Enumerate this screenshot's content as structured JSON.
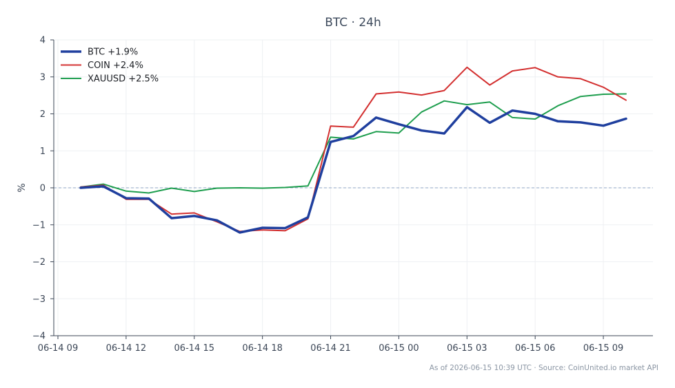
{
  "chart_data": {
    "type": "line",
    "title": "BTC · 24h",
    "xlabel": "",
    "ylabel": "%",
    "ylim": [
      -4,
      4
    ],
    "xlim": [
      "2026-06-14 09:00",
      "2026-06-15 11:00"
    ],
    "yticks": [
      4,
      3,
      2,
      1,
      0,
      -1,
      -2,
      -3,
      -4
    ],
    "ytick_labels": [
      "4",
      "3",
      "2",
      "1",
      "0",
      "−1",
      "−2",
      "−3",
      "−4"
    ],
    "xticks": [
      {
        "t": "2026-06-14 09:00",
        "label": "06-14 09"
      },
      {
        "t": "2026-06-14 12:00",
        "label": "06-14 12"
      },
      {
        "t": "2026-06-14 15:00",
        "label": "06-14 15"
      },
      {
        "t": "2026-06-14 18:00",
        "label": "06-14 18"
      },
      {
        "t": "2026-06-14 21:00",
        "label": "06-14 21"
      },
      {
        "t": "2026-06-15 00:00",
        "label": "06-15 00"
      },
      {
        "t": "2026-06-15 03:00",
        "label": "06-15 03"
      },
      {
        "t": "2026-06-15 06:00",
        "label": "06-15 06"
      },
      {
        "t": "2026-06-15 09:00",
        "label": "06-15 09"
      }
    ],
    "grid": true,
    "reference_line": {
      "y": 0,
      "style": "dashed",
      "color": "#8fa4c4"
    },
    "legend_position": "top-left",
    "x": [
      "2026-06-14 10:00",
      "2026-06-14 11:00",
      "2026-06-14 12:00",
      "2026-06-14 13:00",
      "2026-06-14 14:00",
      "2026-06-14 15:00",
      "2026-06-14 16:00",
      "2026-06-14 17:00",
      "2026-06-14 18:00",
      "2026-06-14 19:00",
      "2026-06-14 20:00",
      "2026-06-14 21:00",
      "2026-06-14 22:00",
      "2026-06-14 23:00",
      "2026-06-15 00:00",
      "2026-06-15 01:00",
      "2026-06-15 02:00",
      "2026-06-15 03:00",
      "2026-06-15 04:00",
      "2026-06-15 05:00",
      "2026-06-15 06:00",
      "2026-06-15 07:00",
      "2026-06-15 08:00",
      "2026-06-15 09:00",
      "2026-06-15 10:00"
    ],
    "series": [
      {
        "name": "BTC +1.9%",
        "color": "#1f3f9e",
        "width": 3.5,
        "values": [
          0.0,
          0.04,
          -0.28,
          -0.29,
          -0.82,
          -0.76,
          -0.88,
          -1.21,
          -1.08,
          -1.09,
          -0.8,
          1.24,
          1.4,
          1.9,
          1.72,
          1.55,
          1.47,
          2.18,
          1.76,
          2.09,
          2.0,
          1.8,
          1.77,
          1.68,
          1.87
        ]
      },
      {
        "name": "COIN +2.4%",
        "color": "#d32f2f",
        "width": 2,
        "values": [
          0.02,
          0.07,
          -0.31,
          -0.31,
          -0.71,
          -0.68,
          -0.92,
          -1.18,
          -1.14,
          -1.16,
          -0.84,
          1.67,
          1.64,
          2.54,
          2.59,
          2.51,
          2.63,
          3.26,
          2.78,
          3.16,
          3.25,
          3.0,
          2.95,
          2.72,
          2.37
        ]
      },
      {
        "name": "XAUUSD +2.5%",
        "color": "#1e9e4e",
        "width": 2,
        "values": [
          0.02,
          0.1,
          -0.09,
          -0.14,
          -0.01,
          -0.1,
          -0.01,
          0.0,
          -0.01,
          0.01,
          0.05,
          1.37,
          1.32,
          1.52,
          1.48,
          2.05,
          2.35,
          2.25,
          2.32,
          1.9,
          1.86,
          2.22,
          2.47,
          2.53,
          2.54
        ]
      }
    ],
    "footer": "As of 2026-06-15 10:39 UTC · Source: CoinUnited.io market API"
  }
}
